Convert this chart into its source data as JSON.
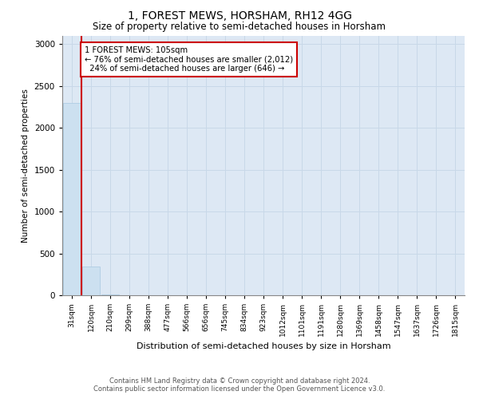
{
  "title": "1, FOREST MEWS, HORSHAM, RH12 4GG",
  "subtitle": "Size of property relative to semi-detached houses in Horsham",
  "xlabel": "Distribution of semi-detached houses by size in Horsham",
  "ylabel": "Number of semi-detached properties",
  "categories": [
    "31sqm",
    "120sqm",
    "210sqm",
    "299sqm",
    "388sqm",
    "477sqm",
    "566sqm",
    "656sqm",
    "745sqm",
    "834sqm",
    "923sqm",
    "1012sqm",
    "1101sqm",
    "1191sqm",
    "1280sqm",
    "1369sqm",
    "1458sqm",
    "1547sqm",
    "1637sqm",
    "1726sqm",
    "1815sqm"
  ],
  "values": [
    2300,
    340,
    8,
    2,
    1,
    1,
    0,
    0,
    0,
    0,
    0,
    0,
    0,
    0,
    0,
    0,
    0,
    0,
    0,
    0,
    0
  ],
  "bar_color": "#cce0f0",
  "bar_edge_color": "#a8c8e0",
  "property_label": "1 FOREST MEWS: 105sqm",
  "pct_smaller": 76,
  "count_smaller": "2,012",
  "pct_larger": 24,
  "count_larger": 646,
  "vline_color": "#cc0000",
  "annotation_box_color": "#cc0000",
  "ylim": [
    0,
    3100
  ],
  "yticks": [
    0,
    500,
    1000,
    1500,
    2000,
    2500,
    3000
  ],
  "grid_color": "#c8d8e8",
  "bg_color": "#dde8f4",
  "title_fontsize": 10,
  "subtitle_fontsize": 8.5,
  "footer_line1": "Contains HM Land Registry data © Crown copyright and database right 2024.",
  "footer_line2": "Contains public sector information licensed under the Open Government Licence v3.0."
}
